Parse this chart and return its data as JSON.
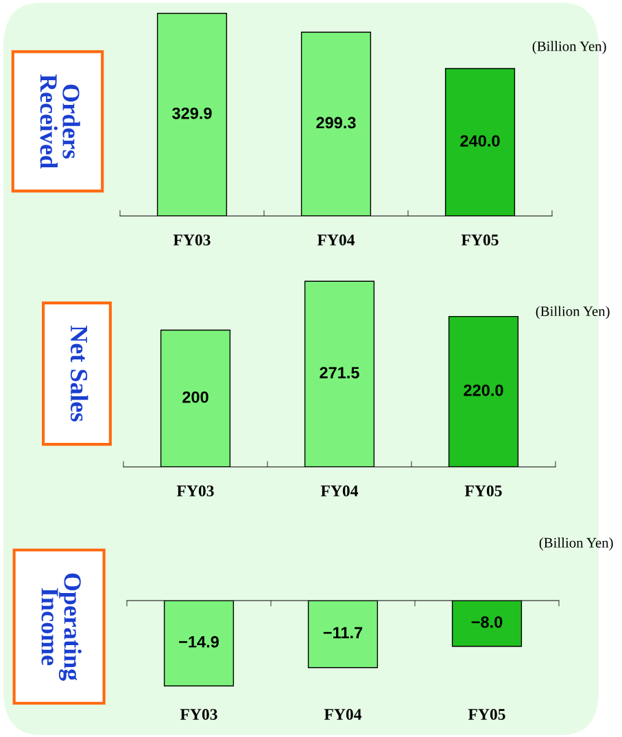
{
  "chart_data": [
    {
      "type": "bar",
      "title": "Orders Received",
      "categories": [
        "FY03",
        "FY04",
        "FY05"
      ],
      "values": [
        329.9,
        299.3,
        240.0
      ],
      "colors": [
        "#7cf27c",
        "#7cf27c",
        "#20c020"
      ],
      "value_labels": [
        "329.9",
        "299.3",
        "240.0"
      ],
      "annotations": [
        "(Billion Yen)"
      ]
    },
    {
      "type": "bar",
      "title": "Net Sales",
      "categories": [
        "FY03",
        "FY04",
        "FY05"
      ],
      "values": [
        200,
        271.5,
        220.0
      ],
      "colors": [
        "#7cf27c",
        "#7cf27c",
        "#20c020"
      ],
      "value_labels": [
        "200",
        "271.5",
        "220.0"
      ],
      "annotations": [
        "(Billion Yen)"
      ]
    },
    {
      "type": "bar",
      "title": "Operating Income",
      "categories": [
        "FY03",
        "FY04",
        "FY05"
      ],
      "values": [
        -14.9,
        -11.7,
        -8.0
      ],
      "colors": [
        "#7cf27c",
        "#7cf27c",
        "#20c020"
      ],
      "value_labels": [
        "−14.9",
        "−11.7",
        "−8.0"
      ],
      "annotations": [
        "(Billion Yen)"
      ]
    }
  ]
}
